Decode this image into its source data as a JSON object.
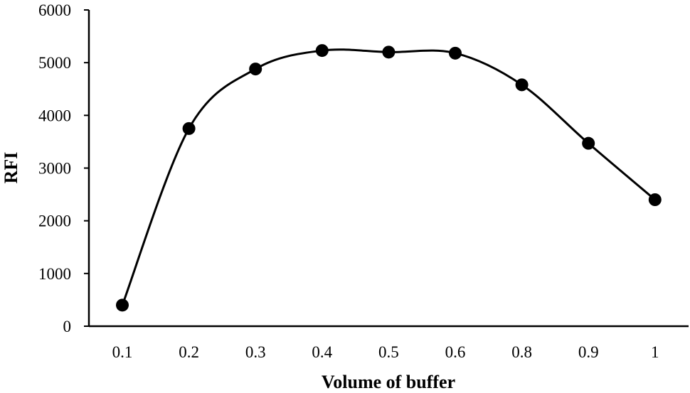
{
  "chart_data": {
    "type": "line",
    "smooth": true,
    "title": "",
    "xlabel": "Volume of buffer",
    "ylabel": "RFI",
    "categories": [
      "0.1",
      "0.2",
      "0.3",
      "0.4",
      "0.5",
      "0.6",
      "0.8",
      "0.9",
      "1"
    ],
    "series": [
      {
        "values": [
          400,
          3750,
          4880,
          5230,
          5200,
          5180,
          4580,
          3470,
          2400
        ]
      }
    ],
    "ylim": [
      0,
      6000
    ],
    "yticks": [
      "0",
      "1000",
      "2000",
      "3000",
      "4000",
      "5000",
      "6000"
    ],
    "grid": false,
    "legend": "none",
    "colors": {
      "line": "#000000",
      "marker": "#000000"
    }
  }
}
